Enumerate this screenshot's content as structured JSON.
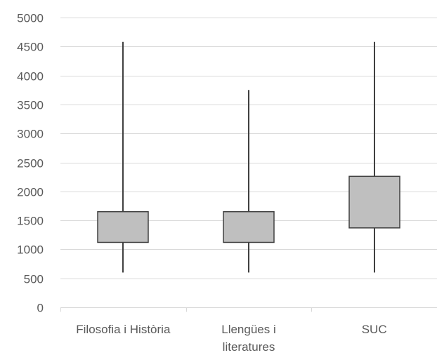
{
  "chart_data": {
    "type": "box",
    "title": "",
    "xlabel": "",
    "ylabel": "",
    "ylim": [
      0,
      5000
    ],
    "yticks": [
      0,
      500,
      1000,
      1500,
      2000,
      2500,
      3000,
      3500,
      4000,
      4500,
      5000
    ],
    "grid": true,
    "legend": "none",
    "colors": {
      "box_fill": "#bfbfbf",
      "box_stroke": "#404040",
      "grid": "#d9d9d9",
      "text": "#595959"
    },
    "categories": [
      {
        "lines": [
          "Filosofia i Història"
        ]
      },
      {
        "lines": [
          "Llengües i",
          "literatures"
        ]
      },
      {
        "lines": [
          "SUC"
        ]
      }
    ],
    "boxes": [
      {
        "min": 600,
        "q1": 1120,
        "q3": 1650,
        "max": 4580
      },
      {
        "min": 600,
        "q1": 1120,
        "q3": 1650,
        "max": 3750
      },
      {
        "min": 600,
        "q1": 1370,
        "q3": 2260,
        "max": 4580
      }
    ]
  }
}
